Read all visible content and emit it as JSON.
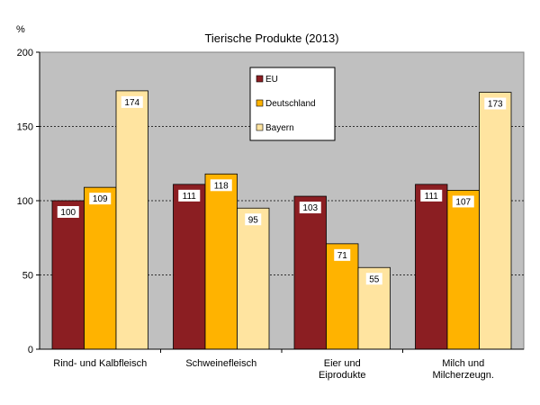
{
  "chart_data": {
    "type": "bar",
    "title": "Tierische Produkte (2013)",
    "unit_label": "%",
    "ylim": [
      0,
      200
    ],
    "yticks": [
      "0",
      "50",
      "100",
      "150",
      "200"
    ],
    "ytick_values": [
      0,
      50,
      100,
      150,
      200
    ],
    "grid": true,
    "legend_position": "top-center",
    "categories": [
      [
        "Rind- und Kalbfleisch"
      ],
      [
        "Schweinefleisch"
      ],
      [
        "Eier und",
        "Eiprodukte"
      ],
      [
        "Milch und",
        "Milcherzeugn."
      ]
    ],
    "series": [
      {
        "name": "EU",
        "color": "#8B1E22",
        "values": [
          100,
          111,
          103,
          111
        ]
      },
      {
        "name": "Deutschland",
        "color": "#FFB300",
        "values": [
          109,
          118,
          71,
          107
        ]
      },
      {
        "name": "Bayern",
        "color": "#FFE4A0",
        "values": [
          174,
          95,
          55,
          173
        ]
      }
    ],
    "plot_background": "#C0C0C0"
  }
}
